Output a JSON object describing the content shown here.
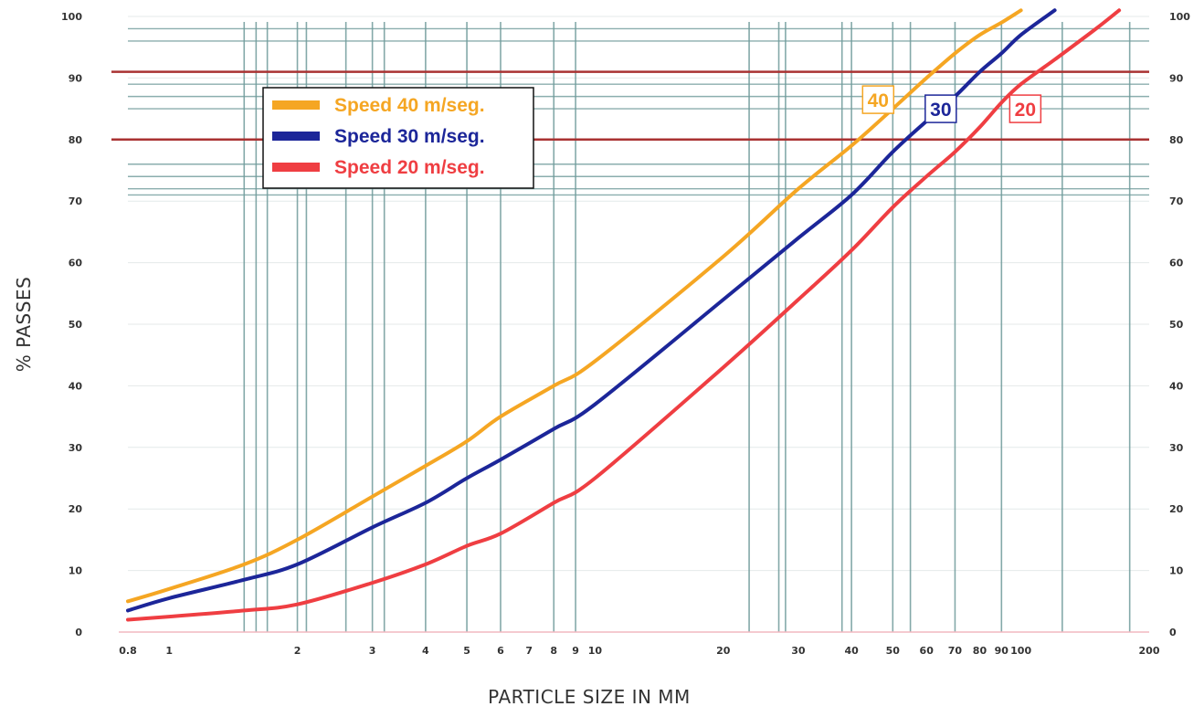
{
  "chart_data": {
    "type": "line",
    "title": "",
    "xlabel": "PARTICLE SIZE IN MM",
    "ylabel": "% PASSES",
    "x_scale": "log",
    "xlim": [
      0.8,
      200
    ],
    "ylim": [
      0,
      100
    ],
    "grid": true,
    "legend_position": "top-left",
    "x_ticks": [
      {
        "value": 0.8,
        "label": "0.8"
      },
      {
        "value": 1,
        "label": "1"
      },
      {
        "value": 2,
        "label": "2"
      },
      {
        "value": 3,
        "label": "3"
      },
      {
        "value": 4,
        "label": "4"
      },
      {
        "value": 5,
        "label": "5"
      },
      {
        "value": 6,
        "label": "6"
      },
      {
        "value": 7,
        "label": "7"
      },
      {
        "value": 8,
        "label": "8"
      },
      {
        "value": 9,
        "label": "9"
      },
      {
        "value": 10,
        "label": "10"
      },
      {
        "value": 20,
        "label": "20"
      },
      {
        "value": 30,
        "label": "30"
      },
      {
        "value": 40,
        "label": "40"
      },
      {
        "value": 50,
        "label": "50"
      },
      {
        "value": 60,
        "label": "60"
      },
      {
        "value": 70,
        "label": "70"
      },
      {
        "value": 80,
        "label": "80"
      },
      {
        "value": 90,
        "label": "90"
      },
      {
        "value": 100,
        "label": "100"
      },
      {
        "value": 200,
        "label": "200"
      }
    ],
    "y_ticks": [
      {
        "value": 0,
        "label": "0"
      },
      {
        "value": 10,
        "label": "10"
      },
      {
        "value": 20,
        "label": "20"
      },
      {
        "value": 30,
        "label": "30"
      },
      {
        "value": 40,
        "label": "40"
      },
      {
        "value": 50,
        "label": "50"
      },
      {
        "value": 60,
        "label": "60"
      },
      {
        "value": 70,
        "label": "70"
      },
      {
        "value": 80,
        "label": "80"
      },
      {
        "value": 90,
        "label": "90"
      },
      {
        "value": 100,
        "label": "100"
      }
    ],
    "x_gridlines": [
      1.5,
      1.6,
      1.7,
      2,
      2.1,
      2.6,
      3,
      3.2,
      4,
      5,
      6,
      8,
      9,
      23,
      27,
      28,
      38,
      40,
      50,
      55,
      70,
      90,
      125,
      180
    ],
    "y_gridlines": [
      71,
      72,
      74,
      76,
      80,
      85,
      87,
      89,
      91,
      96,
      98
    ],
    "reference_lines": [
      {
        "y": 80,
        "color": "#a93232"
      },
      {
        "y": 91,
        "color": "#a93232"
      }
    ],
    "series": [
      {
        "name": "Speed 40 m/seg.",
        "label": "40",
        "color": "#f5a623",
        "points": [
          [
            0.8,
            5
          ],
          [
            1,
            7
          ],
          [
            1.5,
            11
          ],
          [
            2,
            15
          ],
          [
            3,
            22
          ],
          [
            4,
            27
          ],
          [
            5,
            31
          ],
          [
            6,
            35
          ],
          [
            8,
            40
          ],
          [
            10,
            44
          ],
          [
            20,
            61
          ],
          [
            30,
            72
          ],
          [
            40,
            79
          ],
          [
            50,
            85
          ],
          [
            60,
            90
          ],
          [
            70,
            94
          ],
          [
            80,
            97
          ],
          [
            90,
            99
          ],
          [
            100,
            101
          ]
        ]
      },
      {
        "name": "Speed 30 m/seg.",
        "label": "30",
        "color": "#1c2699",
        "points": [
          [
            0.8,
            3.5
          ],
          [
            1,
            5.5
          ],
          [
            1.5,
            8.5
          ],
          [
            2,
            11
          ],
          [
            3,
            17
          ],
          [
            4,
            21
          ],
          [
            5,
            25
          ],
          [
            6,
            28
          ],
          [
            8,
            33
          ],
          [
            10,
            37
          ],
          [
            20,
            54
          ],
          [
            30,
            64
          ],
          [
            40,
            71
          ],
          [
            50,
            78
          ],
          [
            60,
            83
          ],
          [
            70,
            87
          ],
          [
            80,
            91
          ],
          [
            90,
            94
          ],
          [
            100,
            97
          ],
          [
            120,
            101
          ]
        ]
      },
      {
        "name": "Speed 20 m/seg.",
        "label": "20",
        "color": "#ef3e42",
        "points": [
          [
            0.8,
            2
          ],
          [
            1,
            2.5
          ],
          [
            1.5,
            3.5
          ],
          [
            2,
            4.5
          ],
          [
            3,
            8
          ],
          [
            4,
            11
          ],
          [
            5,
            14
          ],
          [
            6,
            16
          ],
          [
            8,
            21
          ],
          [
            10,
            25
          ],
          [
            20,
            43
          ],
          [
            30,
            54
          ],
          [
            40,
            62
          ],
          [
            50,
            69
          ],
          [
            60,
            74
          ],
          [
            70,
            78
          ],
          [
            80,
            82
          ],
          [
            90,
            86
          ],
          [
            100,
            89
          ],
          [
            120,
            93
          ],
          [
            150,
            98
          ],
          [
            170,
            101
          ]
        ]
      }
    ]
  }
}
